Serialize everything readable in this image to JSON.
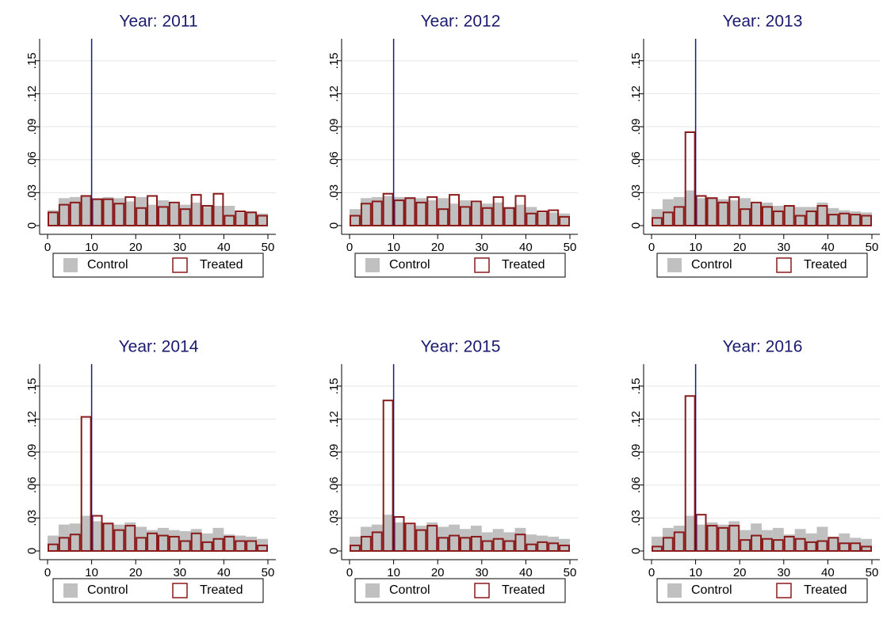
{
  "chart_data": [
    {
      "type": "histogram",
      "title": "Year: 2011",
      "bins": [
        0,
        2.5,
        5,
        7.5,
        10,
        12.5,
        15,
        17.5,
        20,
        22.5,
        25,
        27.5,
        30,
        32.5,
        35,
        37.5,
        40,
        42.5,
        45,
        47.5,
        50
      ],
      "series": [
        {
          "name": "Control",
          "color": "#c0c0c0",
          "filled": true,
          "values": [
            0.014,
            0.025,
            0.026,
            0.027,
            0.025,
            0.026,
            0.025,
            0.022,
            0.026,
            0.019,
            0.023,
            0.02,
            0.019,
            0.021,
            0.017,
            0.018,
            0.018,
            0.012,
            0.013,
            0.011
          ]
        },
        {
          "name": "Treated",
          "color": "#8b1a1a",
          "filled": false,
          "values": [
            0.012,
            0.019,
            0.021,
            0.027,
            0.024,
            0.024,
            0.02,
            0.026,
            0.016,
            0.027,
            0.017,
            0.021,
            0.015,
            0.028,
            0.018,
            0.029,
            0.009,
            0.013,
            0.012,
            0.009
          ]
        }
      ],
      "xline": 10,
      "xlim": [
        -1.8,
        51.8
      ],
      "xticks": [
        0,
        10,
        20,
        30,
        40,
        50
      ],
      "ylim": [
        0,
        0.17
      ],
      "yticks": [
        0,
        {
          "value": 0.03,
          "label": ".03"
        },
        {
          "value": 0.06,
          "label": ".06"
        },
        {
          "value": 0.09,
          "label": ".09"
        },
        {
          "value": 0.12,
          "label": ".12"
        },
        {
          "value": 0.15,
          "label": ".15"
        }
      ],
      "grid": true,
      "legend": "bottom"
    },
    {
      "type": "histogram",
      "title": "Year: 2012",
      "bins": [
        0,
        2.5,
        5,
        7.5,
        10,
        12.5,
        15,
        17.5,
        20,
        22.5,
        25,
        27.5,
        30,
        32.5,
        35,
        37.5,
        40,
        42.5,
        45,
        47.5,
        50
      ],
      "series": [
        {
          "name": "Control",
          "color": "#c0c0c0",
          "filled": true,
          "values": [
            0.015,
            0.025,
            0.026,
            0.027,
            0.026,
            0.026,
            0.025,
            0.023,
            0.025,
            0.02,
            0.023,
            0.021,
            0.02,
            0.021,
            0.017,
            0.019,
            0.017,
            0.012,
            0.012,
            0.011
          ]
        },
        {
          "name": "Treated",
          "color": "#8b1a1a",
          "filled": false,
          "values": [
            0.009,
            0.02,
            0.022,
            0.029,
            0.023,
            0.025,
            0.021,
            0.026,
            0.015,
            0.028,
            0.017,
            0.022,
            0.016,
            0.026,
            0.016,
            0.027,
            0.011,
            0.013,
            0.014,
            0.008
          ]
        }
      ],
      "xline": 10,
      "xlim": [
        -1.8,
        51.8
      ],
      "xticks": [
        0,
        10,
        20,
        30,
        40,
        50
      ],
      "ylim": [
        0,
        0.17
      ],
      "yticks": [
        0,
        {
          "value": 0.03,
          "label": ".03"
        },
        {
          "value": 0.06,
          "label": ".06"
        },
        {
          "value": 0.09,
          "label": ".09"
        },
        {
          "value": 0.12,
          "label": ".12"
        },
        {
          "value": 0.15,
          "label": ".15"
        }
      ],
      "grid": true,
      "legend": "bottom"
    },
    {
      "type": "histogram",
      "title": "Year: 2013",
      "bins": [
        0,
        2.5,
        5,
        7.5,
        10,
        12.5,
        15,
        17.5,
        20,
        22.5,
        25,
        27.5,
        30,
        32.5,
        35,
        37.5,
        40,
        42.5,
        45,
        47.5,
        50
      ],
      "series": [
        {
          "name": "Control",
          "color": "#c0c0c0",
          "filled": true,
          "values": [
            0.015,
            0.024,
            0.026,
            0.032,
            0.025,
            0.026,
            0.024,
            0.023,
            0.025,
            0.02,
            0.021,
            0.018,
            0.018,
            0.017,
            0.017,
            0.021,
            0.016,
            0.014,
            0.013,
            0.012
          ]
        },
        {
          "name": "Treated",
          "color": "#8b1a1a",
          "filled": false,
          "values": [
            0.007,
            0.012,
            0.017,
            0.085,
            0.027,
            0.025,
            0.021,
            0.026,
            0.015,
            0.021,
            0.017,
            0.013,
            0.018,
            0.009,
            0.013,
            0.018,
            0.01,
            0.011,
            0.01,
            0.009
          ]
        }
      ],
      "xline": 10,
      "xlim": [
        -1.8,
        51.8
      ],
      "xticks": [
        0,
        10,
        20,
        30,
        40,
        50
      ],
      "ylim": [
        0,
        0.17
      ],
      "yticks": [
        0,
        {
          "value": 0.03,
          "label": ".03"
        },
        {
          "value": 0.06,
          "label": ".06"
        },
        {
          "value": 0.09,
          "label": ".09"
        },
        {
          "value": 0.12,
          "label": ".12"
        },
        {
          "value": 0.15,
          "label": ".15"
        }
      ],
      "grid": true,
      "legend": "bottom"
    },
    {
      "type": "histogram",
      "title": "Year: 2014",
      "bins": [
        0,
        2.5,
        5,
        7.5,
        10,
        12.5,
        15,
        17.5,
        20,
        22.5,
        25,
        27.5,
        30,
        32.5,
        35,
        37.5,
        40,
        42.5,
        45,
        47.5,
        50
      ],
      "series": [
        {
          "name": "Control",
          "color": "#c0c0c0",
          "filled": true,
          "values": [
            0.014,
            0.024,
            0.025,
            0.032,
            0.027,
            0.025,
            0.024,
            0.026,
            0.022,
            0.019,
            0.021,
            0.019,
            0.018,
            0.02,
            0.016,
            0.021,
            0.015,
            0.014,
            0.013,
            0.011
          ]
        },
        {
          "name": "Treated",
          "color": "#8b1a1a",
          "filled": false,
          "values": [
            0.006,
            0.012,
            0.015,
            0.122,
            0.032,
            0.025,
            0.019,
            0.023,
            0.012,
            0.016,
            0.014,
            0.013,
            0.009,
            0.016,
            0.008,
            0.011,
            0.013,
            0.009,
            0.009,
            0.005
          ]
        }
      ],
      "xline": 10,
      "xlim": [
        -1.8,
        51.8
      ],
      "xticks": [
        0,
        10,
        20,
        30,
        40,
        50
      ],
      "ylim": [
        0,
        0.17
      ],
      "yticks": [
        0,
        {
          "value": 0.03,
          "label": ".03"
        },
        {
          "value": 0.06,
          "label": ".06"
        },
        {
          "value": 0.09,
          "label": ".09"
        },
        {
          "value": 0.12,
          "label": ".12"
        },
        {
          "value": 0.15,
          "label": ".15"
        }
      ],
      "grid": true,
      "legend": "bottom"
    },
    {
      "type": "histogram",
      "title": "Year: 2015",
      "bins": [
        0,
        2.5,
        5,
        7.5,
        10,
        12.5,
        15,
        17.5,
        20,
        22.5,
        25,
        27.5,
        30,
        32.5,
        35,
        37.5,
        40,
        42.5,
        45,
        47.5,
        50
      ],
      "series": [
        {
          "name": "Control",
          "color": "#c0c0c0",
          "filled": true,
          "values": [
            0.013,
            0.022,
            0.024,
            0.033,
            0.026,
            0.024,
            0.023,
            0.026,
            0.022,
            0.024,
            0.02,
            0.023,
            0.017,
            0.02,
            0.017,
            0.021,
            0.015,
            0.014,
            0.013,
            0.011
          ]
        },
        {
          "name": "Treated",
          "color": "#8b1a1a",
          "filled": false,
          "values": [
            0.005,
            0.013,
            0.017,
            0.137,
            0.031,
            0.025,
            0.019,
            0.023,
            0.012,
            0.014,
            0.012,
            0.013,
            0.009,
            0.011,
            0.009,
            0.015,
            0.006,
            0.008,
            0.007,
            0.005
          ]
        }
      ],
      "xline": 10,
      "xlim": [
        -1.8,
        51.8
      ],
      "xticks": [
        0,
        10,
        20,
        30,
        40,
        50
      ],
      "ylim": [
        0,
        0.17
      ],
      "yticks": [
        0,
        {
          "value": 0.03,
          "label": ".03"
        },
        {
          "value": 0.06,
          "label": ".06"
        },
        {
          "value": 0.09,
          "label": ".09"
        },
        {
          "value": 0.12,
          "label": ".12"
        },
        {
          "value": 0.15,
          "label": ".15"
        }
      ],
      "grid": true,
      "legend": "bottom"
    },
    {
      "type": "histogram",
      "title": "Year: 2016",
      "bins": [
        0,
        2.5,
        5,
        7.5,
        10,
        12.5,
        15,
        17.5,
        20,
        22.5,
        25,
        27.5,
        30,
        32.5,
        35,
        37.5,
        40,
        42.5,
        45,
        47.5,
        50
      ],
      "series": [
        {
          "name": "Control",
          "color": "#c0c0c0",
          "filled": true,
          "values": [
            0.013,
            0.021,
            0.023,
            0.032,
            0.024,
            0.026,
            0.024,
            0.027,
            0.019,
            0.025,
            0.019,
            0.021,
            0.015,
            0.02,
            0.016,
            0.022,
            0.013,
            0.016,
            0.012,
            0.011
          ]
        },
        {
          "name": "Treated",
          "color": "#8b1a1a",
          "filled": false,
          "values": [
            0.004,
            0.012,
            0.017,
            0.141,
            0.033,
            0.023,
            0.021,
            0.023,
            0.01,
            0.014,
            0.011,
            0.01,
            0.013,
            0.011,
            0.008,
            0.009,
            0.012,
            0.007,
            0.007,
            0.004
          ]
        }
      ],
      "xline": 10,
      "xlim": [
        -1.8,
        51.8
      ],
      "xticks": [
        0,
        10,
        20,
        30,
        40,
        50
      ],
      "ylim": [
        0,
        0.17
      ],
      "yticks": [
        0,
        {
          "value": 0.03,
          "label": ".03"
        },
        {
          "value": 0.06,
          "label": ".06"
        },
        {
          "value": 0.09,
          "label": ".09"
        },
        {
          "value": 0.12,
          "label": ".12"
        },
        {
          "value": 0.15,
          "label": ".15"
        }
      ],
      "grid": true,
      "legend": "bottom"
    }
  ]
}
